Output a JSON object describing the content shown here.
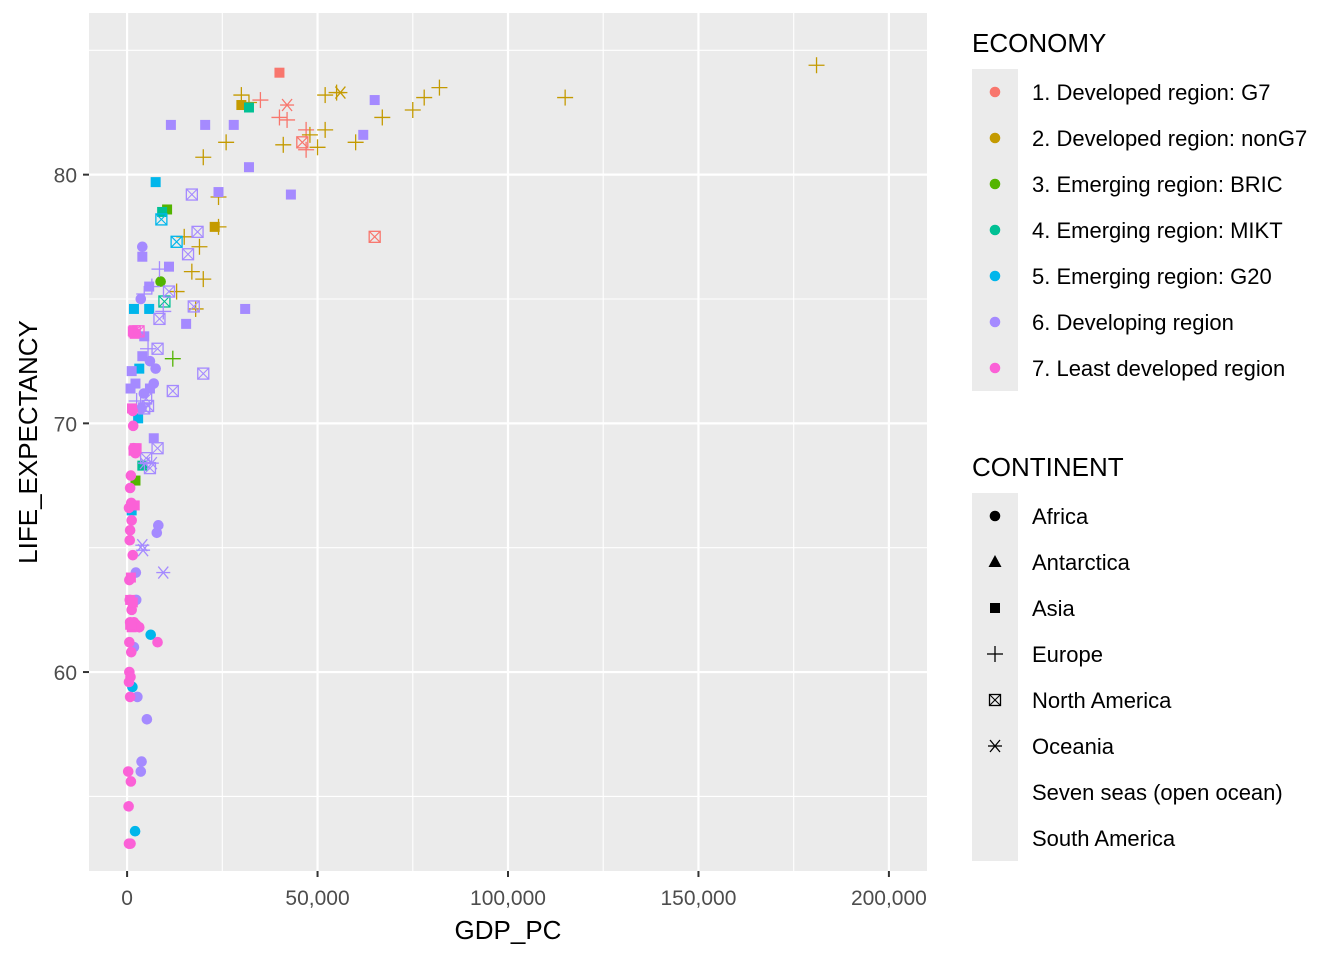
{
  "chart_data": {
    "type": "scatter",
    "title": "",
    "xlabel": "GDP_PC",
    "ylabel": "LIFE_EXPECTANCY",
    "xlim": [
      -10000,
      210000
    ],
    "ylim": [
      52,
      86.5
    ],
    "grid": true,
    "x_ticks": [
      0,
      50000,
      100000,
      150000,
      200000
    ],
    "x_tick_labels": [
      "0",
      "50,000",
      "100,000",
      "150,000",
      "200,000"
    ],
    "y_ticks": [
      60,
      70,
      80
    ],
    "y_tick_labels": [
      "60",
      "70",
      "80"
    ],
    "legend_position": "right",
    "legends": [
      {
        "title": "ECONOMY",
        "aesthetic": "color",
        "entries": [
          {
            "label": "1. Developed region: G7",
            "color": "#F8766D"
          },
          {
            "label": "2. Developed region: nonG7",
            "color": "#C49A00"
          },
          {
            "label": "3. Emerging region: BRIC",
            "color": "#53B400"
          },
          {
            "label": "4. Emerging region: MIKT",
            "color": "#00C094"
          },
          {
            "label": "5. Emerging region: G20",
            "color": "#00B6EB"
          },
          {
            "label": "6. Developing region",
            "color": "#A58AFF"
          },
          {
            "label": "7. Least developed region",
            "color": "#FB61D7"
          }
        ]
      },
      {
        "title": "CONTINENT",
        "aesthetic": "shape",
        "entries": [
          {
            "label": "Africa",
            "shape": "circle"
          },
          {
            "label": "Antarctica",
            "shape": "triangle"
          },
          {
            "label": "Asia",
            "shape": "square"
          },
          {
            "label": "Europe",
            "shape": "plus"
          },
          {
            "label": "North America",
            "shape": "square-cross"
          },
          {
            "label": "Oceania",
            "shape": "asterisk"
          },
          {
            "label": "Seven seas (open ocean)",
            "shape": "none"
          },
          {
            "label": "South America",
            "shape": "none"
          }
        ]
      }
    ],
    "series": [
      {
        "economy": 1,
        "continent": "Asia",
        "points": [
          [
            40000,
            84.1
          ]
        ]
      },
      {
        "economy": 1,
        "continent": "Europe",
        "points": [
          [
            40000,
            82.3
          ],
          [
            42000,
            82.2
          ],
          [
            47000,
            81.0
          ],
          [
            47000,
            81.8
          ],
          [
            35000,
            83.0
          ]
        ]
      },
      {
        "economy": 1,
        "continent": "North America",
        "points": [
          [
            46000,
            81.3
          ],
          [
            65000,
            77.5
          ]
        ]
      },
      {
        "economy": 1,
        "continent": "Oceania",
        "points": [
          [
            42000,
            82.8
          ]
        ]
      },
      {
        "economy": 2,
        "continent": "Asia",
        "points": [
          [
            30000,
            82.8
          ],
          [
            23000,
            77.9
          ]
        ]
      },
      {
        "economy": 2,
        "continent": "Europe",
        "points": [
          [
            30000,
            83.2
          ],
          [
            32000,
            82.9
          ],
          [
            26000,
            81.3
          ],
          [
            20000,
            80.7
          ],
          [
            41000,
            81.2
          ],
          [
            48000,
            81.6
          ],
          [
            50000,
            81.1
          ],
          [
            52000,
            81.8
          ],
          [
            52000,
            83.2
          ],
          [
            55000,
            83.3
          ],
          [
            60000,
            81.3
          ],
          [
            67000,
            82.3
          ],
          [
            75000,
            82.6
          ],
          [
            78000,
            83.1
          ],
          [
            82000,
            83.5
          ],
          [
            115000,
            83.1
          ],
          [
            181000,
            84.4
          ],
          [
            24000,
            79.1
          ],
          [
            15000,
            77.5
          ],
          [
            17000,
            76.1
          ],
          [
            20000,
            75.8
          ],
          [
            19000,
            77.1
          ],
          [
            24000,
            77.9
          ],
          [
            13000,
            75.3
          ],
          [
            18000,
            74.6
          ]
        ]
      },
      {
        "economy": 2,
        "continent": "Oceania",
        "points": [
          [
            56000,
            83.3
          ]
        ]
      },
      {
        "economy": 3,
        "continent": "Asia",
        "points": [
          [
            10500,
            78.6
          ],
          [
            2200,
            67.7
          ]
        ]
      },
      {
        "economy": 3,
        "continent": "Europe",
        "points": [
          [
            12000,
            72.6
          ]
        ]
      },
      {
        "economy": 3,
        "continent": "South America",
        "points": [
          [
            8800,
            75.7
          ]
        ]
      },
      {
        "economy": 4,
        "continent": "Asia",
        "points": [
          [
            32000,
            82.7
          ],
          [
            4000,
            68.3
          ],
          [
            9200,
            78.5
          ]
        ]
      },
      {
        "economy": 4,
        "continent": "North America",
        "points": [
          [
            9800,
            74.9
          ]
        ]
      },
      {
        "economy": 5,
        "continent": "Asia",
        "points": [
          [
            7500,
            79.7
          ],
          [
            3200,
            72.2
          ],
          [
            1200,
            66.5
          ],
          [
            5800,
            74.6
          ],
          [
            2900,
            70.2
          ],
          [
            1800,
            74.6
          ]
        ]
      },
      {
        "economy": 5,
        "continent": "Africa",
        "points": [
          [
            6200,
            61.5
          ],
          [
            2100,
            53.6
          ],
          [
            1400,
            59.4
          ]
        ]
      },
      {
        "economy": 5,
        "continent": "North America",
        "points": [
          [
            9000,
            78.2
          ],
          [
            13000,
            77.3
          ]
        ]
      },
      {
        "economy": 6,
        "continent": "Asia",
        "points": [
          [
            11500,
            82.0
          ],
          [
            20500,
            82.0
          ],
          [
            28000,
            82.0
          ],
          [
            65000,
            83.0
          ],
          [
            62000,
            81.6
          ],
          [
            32000,
            80.3
          ],
          [
            43000,
            79.2
          ],
          [
            24000,
            79.3
          ],
          [
            31000,
            74.6
          ],
          [
            15500,
            74.0
          ],
          [
            11000,
            76.3
          ],
          [
            4000,
            76.7
          ],
          [
            5800,
            75.5
          ],
          [
            4500,
            73.5
          ],
          [
            4000,
            72.7
          ],
          [
            2200,
            71.6
          ],
          [
            900,
            71.4
          ],
          [
            6000,
            71.4
          ],
          [
            7000,
            69.4
          ],
          [
            1200,
            72.1
          ]
        ]
      },
      {
        "economy": 6,
        "continent": "Africa",
        "points": [
          [
            4000,
            77.1
          ],
          [
            3600,
            75.0
          ],
          [
            7500,
            72.2
          ],
          [
            4400,
            71.2
          ],
          [
            3800,
            70.6
          ],
          [
            8200,
            65.9
          ],
          [
            7800,
            65.6
          ],
          [
            2300,
            64.0
          ],
          [
            2400,
            62.9
          ],
          [
            1800,
            61.0
          ],
          [
            2700,
            59.0
          ],
          [
            5200,
            58.1
          ],
          [
            3800,
            56.4
          ],
          [
            3600,
            56.0
          ]
        ]
      },
      {
        "economy": 6,
        "continent": "Europe",
        "points": [
          [
            4500,
            75.2
          ],
          [
            6500,
            75.5
          ],
          [
            8500,
            76.2
          ],
          [
            9500,
            74.5
          ],
          [
            5500,
            73.0
          ],
          [
            2500,
            70.9
          ]
        ]
      },
      {
        "economy": 6,
        "continent": "North America",
        "points": [
          [
            17000,
            79.2
          ],
          [
            18500,
            77.7
          ],
          [
            16000,
            76.8
          ],
          [
            11000,
            75.3
          ],
          [
            17500,
            74.7
          ],
          [
            8500,
            74.2
          ],
          [
            8000,
            73.0
          ],
          [
            12000,
            71.3
          ],
          [
            20000,
            72.0
          ],
          [
            5000,
            71.0
          ],
          [
            4500,
            70.6
          ],
          [
            5500,
            70.7
          ],
          [
            8000,
            69.0
          ],
          [
            5000,
            68.6
          ],
          [
            6000,
            68.2
          ]
        ]
      },
      {
        "economy": 6,
        "continent": "Oceania",
        "points": [
          [
            4000,
            65.1
          ],
          [
            4200,
            64.9
          ],
          [
            9500,
            64.0
          ],
          [
            4700,
            68.4
          ],
          [
            6500,
            68.4
          ]
        ]
      },
      {
        "economy": 6,
        "continent": "South America",
        "points": [
          [
            6000,
            72.5
          ],
          [
            7000,
            71.6
          ]
        ]
      },
      {
        "economy": 7,
        "continent": "Africa",
        "points": [
          [
            1500,
            70.5
          ],
          [
            1600,
            69.9
          ],
          [
            1700,
            69.0
          ],
          [
            2200,
            68.8
          ],
          [
            1000,
            67.9
          ],
          [
            800,
            67.4
          ],
          [
            1100,
            66.8
          ],
          [
            500,
            66.6
          ],
          [
            1200,
            66.1
          ],
          [
            800,
            65.7
          ],
          [
            700,
            65.3
          ],
          [
            1500,
            64.7
          ],
          [
            600,
            63.7
          ],
          [
            700,
            62.9
          ],
          [
            1200,
            62.5
          ],
          [
            800,
            62.0
          ],
          [
            1800,
            62.0
          ],
          [
            2400,
            61.9
          ],
          [
            3200,
            61.8
          ],
          [
            600,
            61.2
          ],
          [
            8000,
            61.2
          ],
          [
            1100,
            60.8
          ],
          [
            600,
            60.0
          ],
          [
            900,
            59.8
          ],
          [
            500,
            59.6
          ],
          [
            800,
            59.0
          ],
          [
            300,
            56.0
          ],
          [
            1000,
            55.6
          ],
          [
            400,
            54.6
          ],
          [
            500,
            53.1
          ],
          [
            900,
            53.1
          ]
        ]
      },
      {
        "economy": 7,
        "continent": "Asia",
        "points": [
          [
            1500,
            73.7
          ],
          [
            2000,
            73.6
          ],
          [
            1300,
            70.6
          ],
          [
            2000,
            69.0
          ],
          [
            2500,
            69.0
          ],
          [
            1700,
            68.9
          ],
          [
            2000,
            66.7
          ],
          [
            1000,
            63.8
          ],
          [
            800,
            62.9
          ],
          [
            1500,
            62.8
          ],
          [
            1200,
            61.8
          ],
          [
            800,
            61.9
          ]
        ]
      },
      {
        "economy": 7,
        "continent": "North America",
        "points": [
          [
            2000,
            73.7
          ],
          [
            3000,
            73.7
          ]
        ]
      }
    ]
  }
}
